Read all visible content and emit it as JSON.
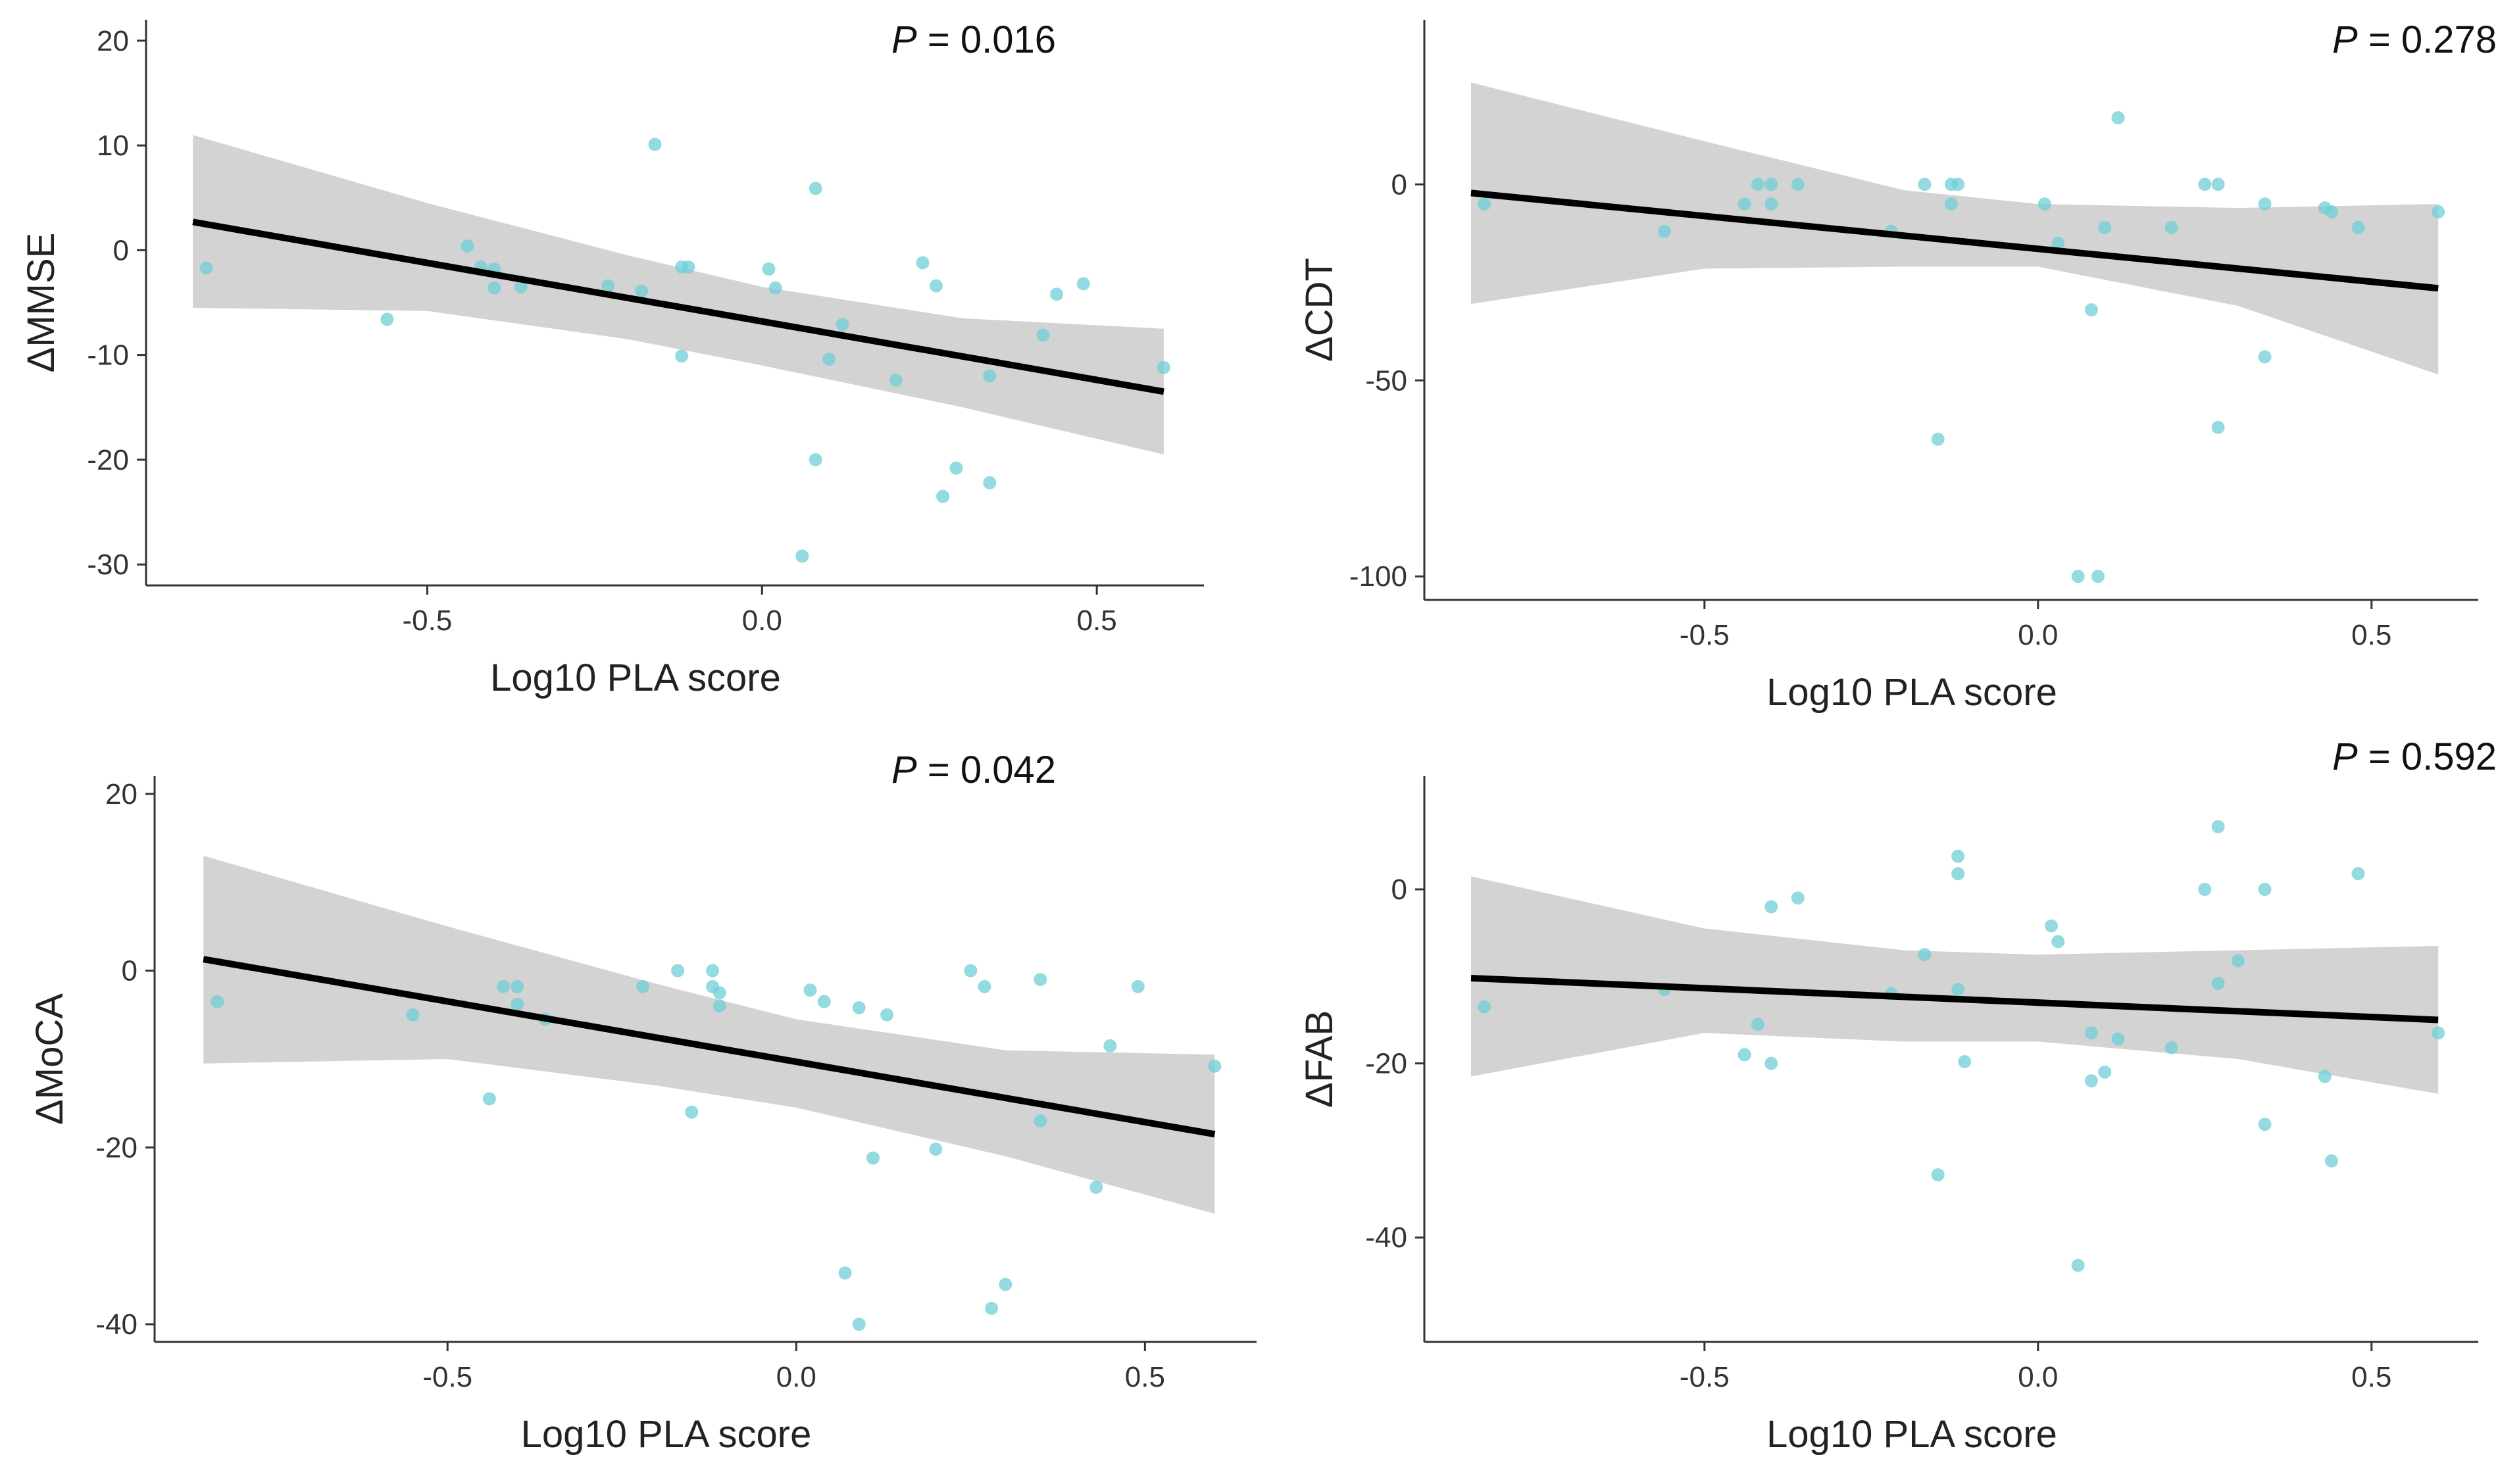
{
  "chart_data": [
    {
      "type": "scatter",
      "panel": "top-left",
      "xlabel": "Log10 PLA score",
      "ylabel": "ΔMMSE",
      "p_label": "P",
      "p_value": "= 0.016",
      "xlim": [
        -0.92,
        0.66
      ],
      "ylim": [
        -32,
        22
      ],
      "xticks": [
        -0.5,
        0.0,
        0.5
      ],
      "xtick_labels": [
        "-0.5",
        "0.0",
        "0.5"
      ],
      "yticks": [
        20,
        10,
        0,
        -10,
        -20,
        -30
      ],
      "ytick_labels": [
        "20",
        "10",
        "0",
        "-10",
        "-20",
        "-30"
      ],
      "fit": {
        "x0": -0.85,
        "y0": 2.7,
        "x1": 0.6,
        "y1": -13.5
      },
      "ci": {
        "x": [
          -0.85,
          -0.5,
          -0.2,
          0.0,
          0.3,
          0.6
        ],
        "upper": [
          11,
          4.5,
          -0.5,
          -3.5,
          -6.5,
          -7.5
        ],
        "lower": [
          -5.5,
          -5.8,
          -8.5,
          -11,
          -15,
          -19.5
        ]
      },
      "points": [
        {
          "x": -0.83,
          "y": -1.7
        },
        {
          "x": -0.56,
          "y": -6.6
        },
        {
          "x": -0.44,
          "y": 0.4
        },
        {
          "x": -0.42,
          "y": -1.6
        },
        {
          "x": -0.4,
          "y": -1.8
        },
        {
          "x": -0.4,
          "y": -3.6
        },
        {
          "x": -0.36,
          "y": -3.5
        },
        {
          "x": -0.23,
          "y": -3.4
        },
        {
          "x": -0.18,
          "y": -3.9
        },
        {
          "x": -0.16,
          "y": 10.1
        },
        {
          "x": -0.12,
          "y": -1.6
        },
        {
          "x": -0.11,
          "y": -1.6
        },
        {
          "x": -0.12,
          "y": -10.1
        },
        {
          "x": 0.01,
          "y": -1.8
        },
        {
          "x": 0.02,
          "y": -3.6
        },
        {
          "x": 0.08,
          "y": 5.9
        },
        {
          "x": 0.08,
          "y": -20.0
        },
        {
          "x": 0.06,
          "y": -29.2
        },
        {
          "x": 0.1,
          "y": -10.4
        },
        {
          "x": 0.12,
          "y": -7.1
        },
        {
          "x": 0.2,
          "y": -12.4
        },
        {
          "x": 0.24,
          "y": -1.2
        },
        {
          "x": 0.26,
          "y": -3.4
        },
        {
          "x": 0.27,
          "y": -23.5
        },
        {
          "x": 0.29,
          "y": -20.8
        },
        {
          "x": 0.34,
          "y": -12.0
        },
        {
          "x": 0.34,
          "y": -22.2
        },
        {
          "x": 0.42,
          "y": -8.1
        },
        {
          "x": 0.44,
          "y": -4.2
        },
        {
          "x": 0.48,
          "y": -3.2
        },
        {
          "x": 0.6,
          "y": -11.2
        }
      ]
    },
    {
      "type": "scatter",
      "panel": "top-right",
      "xlabel": "Log10 PLA score",
      "ylabel": "ΔCDT",
      "p_label": "P",
      "p_value": "= 0.278",
      "xlim": [
        -0.92,
        0.66
      ],
      "ylim": [
        -106,
        42
      ],
      "xticks": [
        -0.5,
        0.0,
        0.5
      ],
      "xtick_labels": [
        "-0.5",
        "0.0",
        "0.5"
      ],
      "yticks": [
        0,
        -50,
        -100
      ],
      "ytick_labels": [
        "0",
        "-50",
        "-100"
      ],
      "fit": {
        "x0": -0.85,
        "y0": -2.2,
        "x1": 0.6,
        "y1": -26.5
      },
      "ci": {
        "x": [
          -0.85,
          -0.5,
          -0.2,
          0.0,
          0.3,
          0.6
        ],
        "upper": [
          26,
          11,
          -1.5,
          -5,
          -6,
          -5
        ],
        "lower": [
          -30.5,
          -21.5,
          -21,
          -21,
          -31,
          -48.5
        ]
      },
      "points": [
        {
          "x": -0.83,
          "y": -5
        },
        {
          "x": -0.56,
          "y": -12
        },
        {
          "x": -0.44,
          "y": -5
        },
        {
          "x": -0.42,
          "y": 0
        },
        {
          "x": -0.4,
          "y": 0
        },
        {
          "x": -0.4,
          "y": -5
        },
        {
          "x": -0.36,
          "y": 0
        },
        {
          "x": -0.22,
          "y": -12
        },
        {
          "x": -0.17,
          "y": 0
        },
        {
          "x": -0.15,
          "y": -65
        },
        {
          "x": -0.13,
          "y": 0
        },
        {
          "x": -0.12,
          "y": 0
        },
        {
          "x": -0.13,
          "y": -5
        },
        {
          "x": 0.01,
          "y": -5
        },
        {
          "x": 0.03,
          "y": -15
        },
        {
          "x": 0.06,
          "y": -100
        },
        {
          "x": 0.09,
          "y": -100
        },
        {
          "x": 0.08,
          "y": -32
        },
        {
          "x": 0.1,
          "y": -11
        },
        {
          "x": 0.12,
          "y": 17
        },
        {
          "x": 0.2,
          "y": -11
        },
        {
          "x": 0.25,
          "y": 0
        },
        {
          "x": 0.27,
          "y": 0
        },
        {
          "x": 0.27,
          "y": -62
        },
        {
          "x": 0.34,
          "y": -5
        },
        {
          "x": 0.34,
          "y": -44
        },
        {
          "x": 0.43,
          "y": -6
        },
        {
          "x": 0.44,
          "y": -7
        },
        {
          "x": 0.48,
          "y": -11
        },
        {
          "x": 0.6,
          "y": -7
        }
      ]
    },
    {
      "type": "scatter",
      "panel": "bottom-left",
      "xlabel": "Log10 PLA score",
      "ylabel": "ΔMoCA",
      "p_label": "P",
      "p_value": "= 0.042",
      "xlim": [
        -0.92,
        0.66
      ],
      "ylim": [
        -42,
        22
      ],
      "xticks": [
        -0.5,
        0.0,
        0.5
      ],
      "xtick_labels": [
        "-0.5",
        "0.0",
        "0.5"
      ],
      "yticks": [
        20,
        0,
        -20,
        -40
      ],
      "ytick_labels": [
        "20",
        "0",
        "-20",
        "-40"
      ],
      "fit": {
        "x0": -0.85,
        "y0": 1.3,
        "x1": 0.6,
        "y1": -18.5
      },
      "ci": {
        "x": [
          -0.85,
          -0.5,
          -0.2,
          0.0,
          0.3,
          0.6
        ],
        "upper": [
          13,
          5,
          -1.5,
          -5.5,
          -9,
          -9.5
        ],
        "lower": [
          -10.5,
          -10,
          -13,
          -15.5,
          -21,
          -27.5
        ]
      },
      "points": [
        {
          "x": -0.83,
          "y": -3.5
        },
        {
          "x": -0.55,
          "y": -5.0
        },
        {
          "x": -0.44,
          "y": -14.5
        },
        {
          "x": -0.42,
          "y": -1.8
        },
        {
          "x": -0.4,
          "y": -1.8
        },
        {
          "x": -0.4,
          "y": -3.8
        },
        {
          "x": -0.36,
          "y": -5.5
        },
        {
          "x": -0.22,
          "y": -1.8
        },
        {
          "x": -0.17,
          "y": 0
        },
        {
          "x": -0.15,
          "y": -16.0
        },
        {
          "x": -0.12,
          "y": 0
        },
        {
          "x": -0.12,
          "y": -1.8
        },
        {
          "x": -0.11,
          "y": -2.5
        },
        {
          "x": -0.11,
          "y": -4.0
        },
        {
          "x": 0.02,
          "y": -2.2
        },
        {
          "x": 0.04,
          "y": -3.5
        },
        {
          "x": 0.07,
          "y": -34.2
        },
        {
          "x": 0.09,
          "y": -40.0
        },
        {
          "x": 0.09,
          "y": -4.2
        },
        {
          "x": 0.11,
          "y": -21.2
        },
        {
          "x": 0.13,
          "y": -5.0
        },
        {
          "x": 0.2,
          "y": -20.2
        },
        {
          "x": 0.25,
          "y": 0
        },
        {
          "x": 0.27,
          "y": -1.8
        },
        {
          "x": 0.28,
          "y": -38.2
        },
        {
          "x": 0.3,
          "y": -35.5
        },
        {
          "x": 0.35,
          "y": -1.0
        },
        {
          "x": 0.35,
          "y": -17.0
        },
        {
          "x": 0.43,
          "y": -24.5
        },
        {
          "x": 0.45,
          "y": -8.5
        },
        {
          "x": 0.49,
          "y": -1.8
        },
        {
          "x": 0.6,
          "y": -10.8
        }
      ]
    },
    {
      "type": "scatter",
      "panel": "bottom-right",
      "xlabel": "Log10 PLA score",
      "ylabel": "ΔFAB",
      "p_label": "P",
      "p_value": "= 0.592",
      "xlim": [
        -0.92,
        0.66
      ],
      "ylim": [
        -52,
        13
      ],
      "xticks": [
        -0.5,
        0.0,
        0.5
      ],
      "xtick_labels": [
        "-0.5",
        "0.0",
        "0.5"
      ],
      "yticks": [
        0,
        -20,
        -40
      ],
      "ytick_labels": [
        "0",
        "-20",
        "-40"
      ],
      "fit": {
        "x0": -0.85,
        "y0": -10.2,
        "x1": 0.6,
        "y1": -15.0
      },
      "ci": {
        "x": [
          -0.85,
          -0.5,
          -0.2,
          0.0,
          0.3,
          0.6
        ],
        "upper": [
          1.5,
          -4.5,
          -7,
          -7.5,
          -7,
          -6.5
        ],
        "lower": [
          -21.5,
          -16.5,
          -17.5,
          -17.5,
          -19.5,
          -23.5
        ]
      },
      "points": [
        {
          "x": -0.83,
          "y": -13.5
        },
        {
          "x": -0.56,
          "y": -11.5
        },
        {
          "x": -0.44,
          "y": -19.0
        },
        {
          "x": -0.42,
          "y": -15.5
        },
        {
          "x": -0.4,
          "y": -2.0
        },
        {
          "x": -0.4,
          "y": -20.0
        },
        {
          "x": -0.36,
          "y": -1.0
        },
        {
          "x": -0.22,
          "y": -12.0
        },
        {
          "x": -0.17,
          "y": -7.5
        },
        {
          "x": -0.15,
          "y": -32.8
        },
        {
          "x": -0.12,
          "y": 3.8
        },
        {
          "x": -0.12,
          "y": 1.8
        },
        {
          "x": -0.12,
          "y": -11.5
        },
        {
          "x": -0.11,
          "y": -19.8
        },
        {
          "x": 0.02,
          "y": -4.2
        },
        {
          "x": 0.03,
          "y": -6.0
        },
        {
          "x": 0.06,
          "y": -43.2
        },
        {
          "x": 0.08,
          "y": -16.5
        },
        {
          "x": 0.08,
          "y": -22.0
        },
        {
          "x": 0.1,
          "y": -21.0
        },
        {
          "x": 0.12,
          "y": -17.2
        },
        {
          "x": 0.2,
          "y": -18.2
        },
        {
          "x": 0.25,
          "y": 0
        },
        {
          "x": 0.27,
          "y": 7.2
        },
        {
          "x": 0.27,
          "y": -10.8
        },
        {
          "x": 0.3,
          "y": -8.2
        },
        {
          "x": 0.34,
          "y": 0
        },
        {
          "x": 0.34,
          "y": -27.0
        },
        {
          "x": 0.43,
          "y": -21.5
        },
        {
          "x": 0.44,
          "y": -31.2
        },
        {
          "x": 0.48,
          "y": 1.8
        },
        {
          "x": 0.6,
          "y": -16.5
        }
      ]
    }
  ]
}
